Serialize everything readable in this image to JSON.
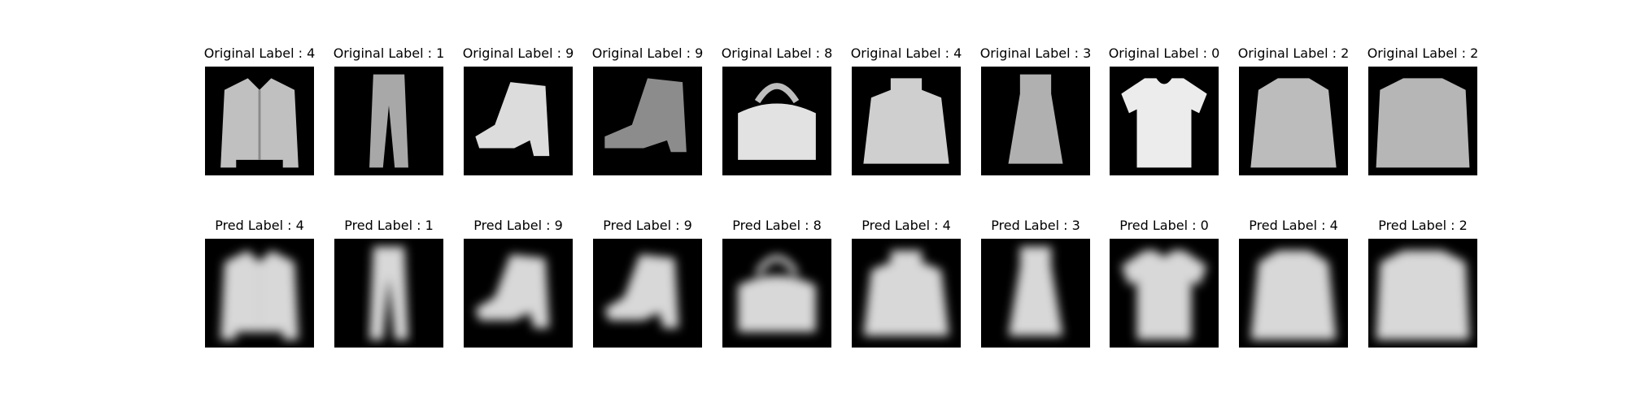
{
  "figure": {
    "rows": [
      {
        "name": "original",
        "items": [
          {
            "title": "Original Label : 4",
            "item": "coat",
            "variant": "original"
          },
          {
            "title": "Original Label : 1",
            "item": "trouser",
            "variant": "original"
          },
          {
            "title": "Original Label : 9",
            "item": "ankle-boot",
            "variant": "original"
          },
          {
            "title": "Original Label : 9",
            "item": "ankle-boot-dark",
            "variant": "original"
          },
          {
            "title": "Original Label : 8",
            "item": "bag",
            "variant": "original"
          },
          {
            "title": "Original Label : 4",
            "item": "coat-high-neck",
            "variant": "original"
          },
          {
            "title": "Original Label : 3",
            "item": "dress",
            "variant": "original"
          },
          {
            "title": "Original Label : 0",
            "item": "tshirt",
            "variant": "original"
          },
          {
            "title": "Original Label : 2",
            "item": "pullover",
            "variant": "original"
          },
          {
            "title": "Original Label : 2",
            "item": "pullover-wide",
            "variant": "original"
          }
        ]
      },
      {
        "name": "predicted",
        "items": [
          {
            "title": "Pred Label : 4",
            "item": "coat",
            "variant": "blurred"
          },
          {
            "title": "Pred Label : 1",
            "item": "trouser",
            "variant": "blurred"
          },
          {
            "title": "Pred Label : 9",
            "item": "ankle-boot",
            "variant": "blurred"
          },
          {
            "title": "Pred Label : 9",
            "item": "ankle-boot",
            "variant": "blurred"
          },
          {
            "title": "Pred Label : 8",
            "item": "bag",
            "variant": "blurred"
          },
          {
            "title": "Pred Label : 4",
            "item": "coat-high-neck",
            "variant": "blurred"
          },
          {
            "title": "Pred Label : 3",
            "item": "dress",
            "variant": "blurred"
          },
          {
            "title": "Pred Label : 0",
            "item": "tshirt",
            "variant": "blurred"
          },
          {
            "title": "Pred Label : 4",
            "item": "pullover",
            "variant": "blurred"
          },
          {
            "title": "Pred Label : 2",
            "item": "pullover-wide",
            "variant": "blurred"
          }
        ]
      }
    ],
    "colors": {
      "background": "#ffffff",
      "image_background": "#000000",
      "garment_light": "#e6e6e6",
      "garment_mid": "#b4b4b4",
      "text": "#000000"
    }
  }
}
